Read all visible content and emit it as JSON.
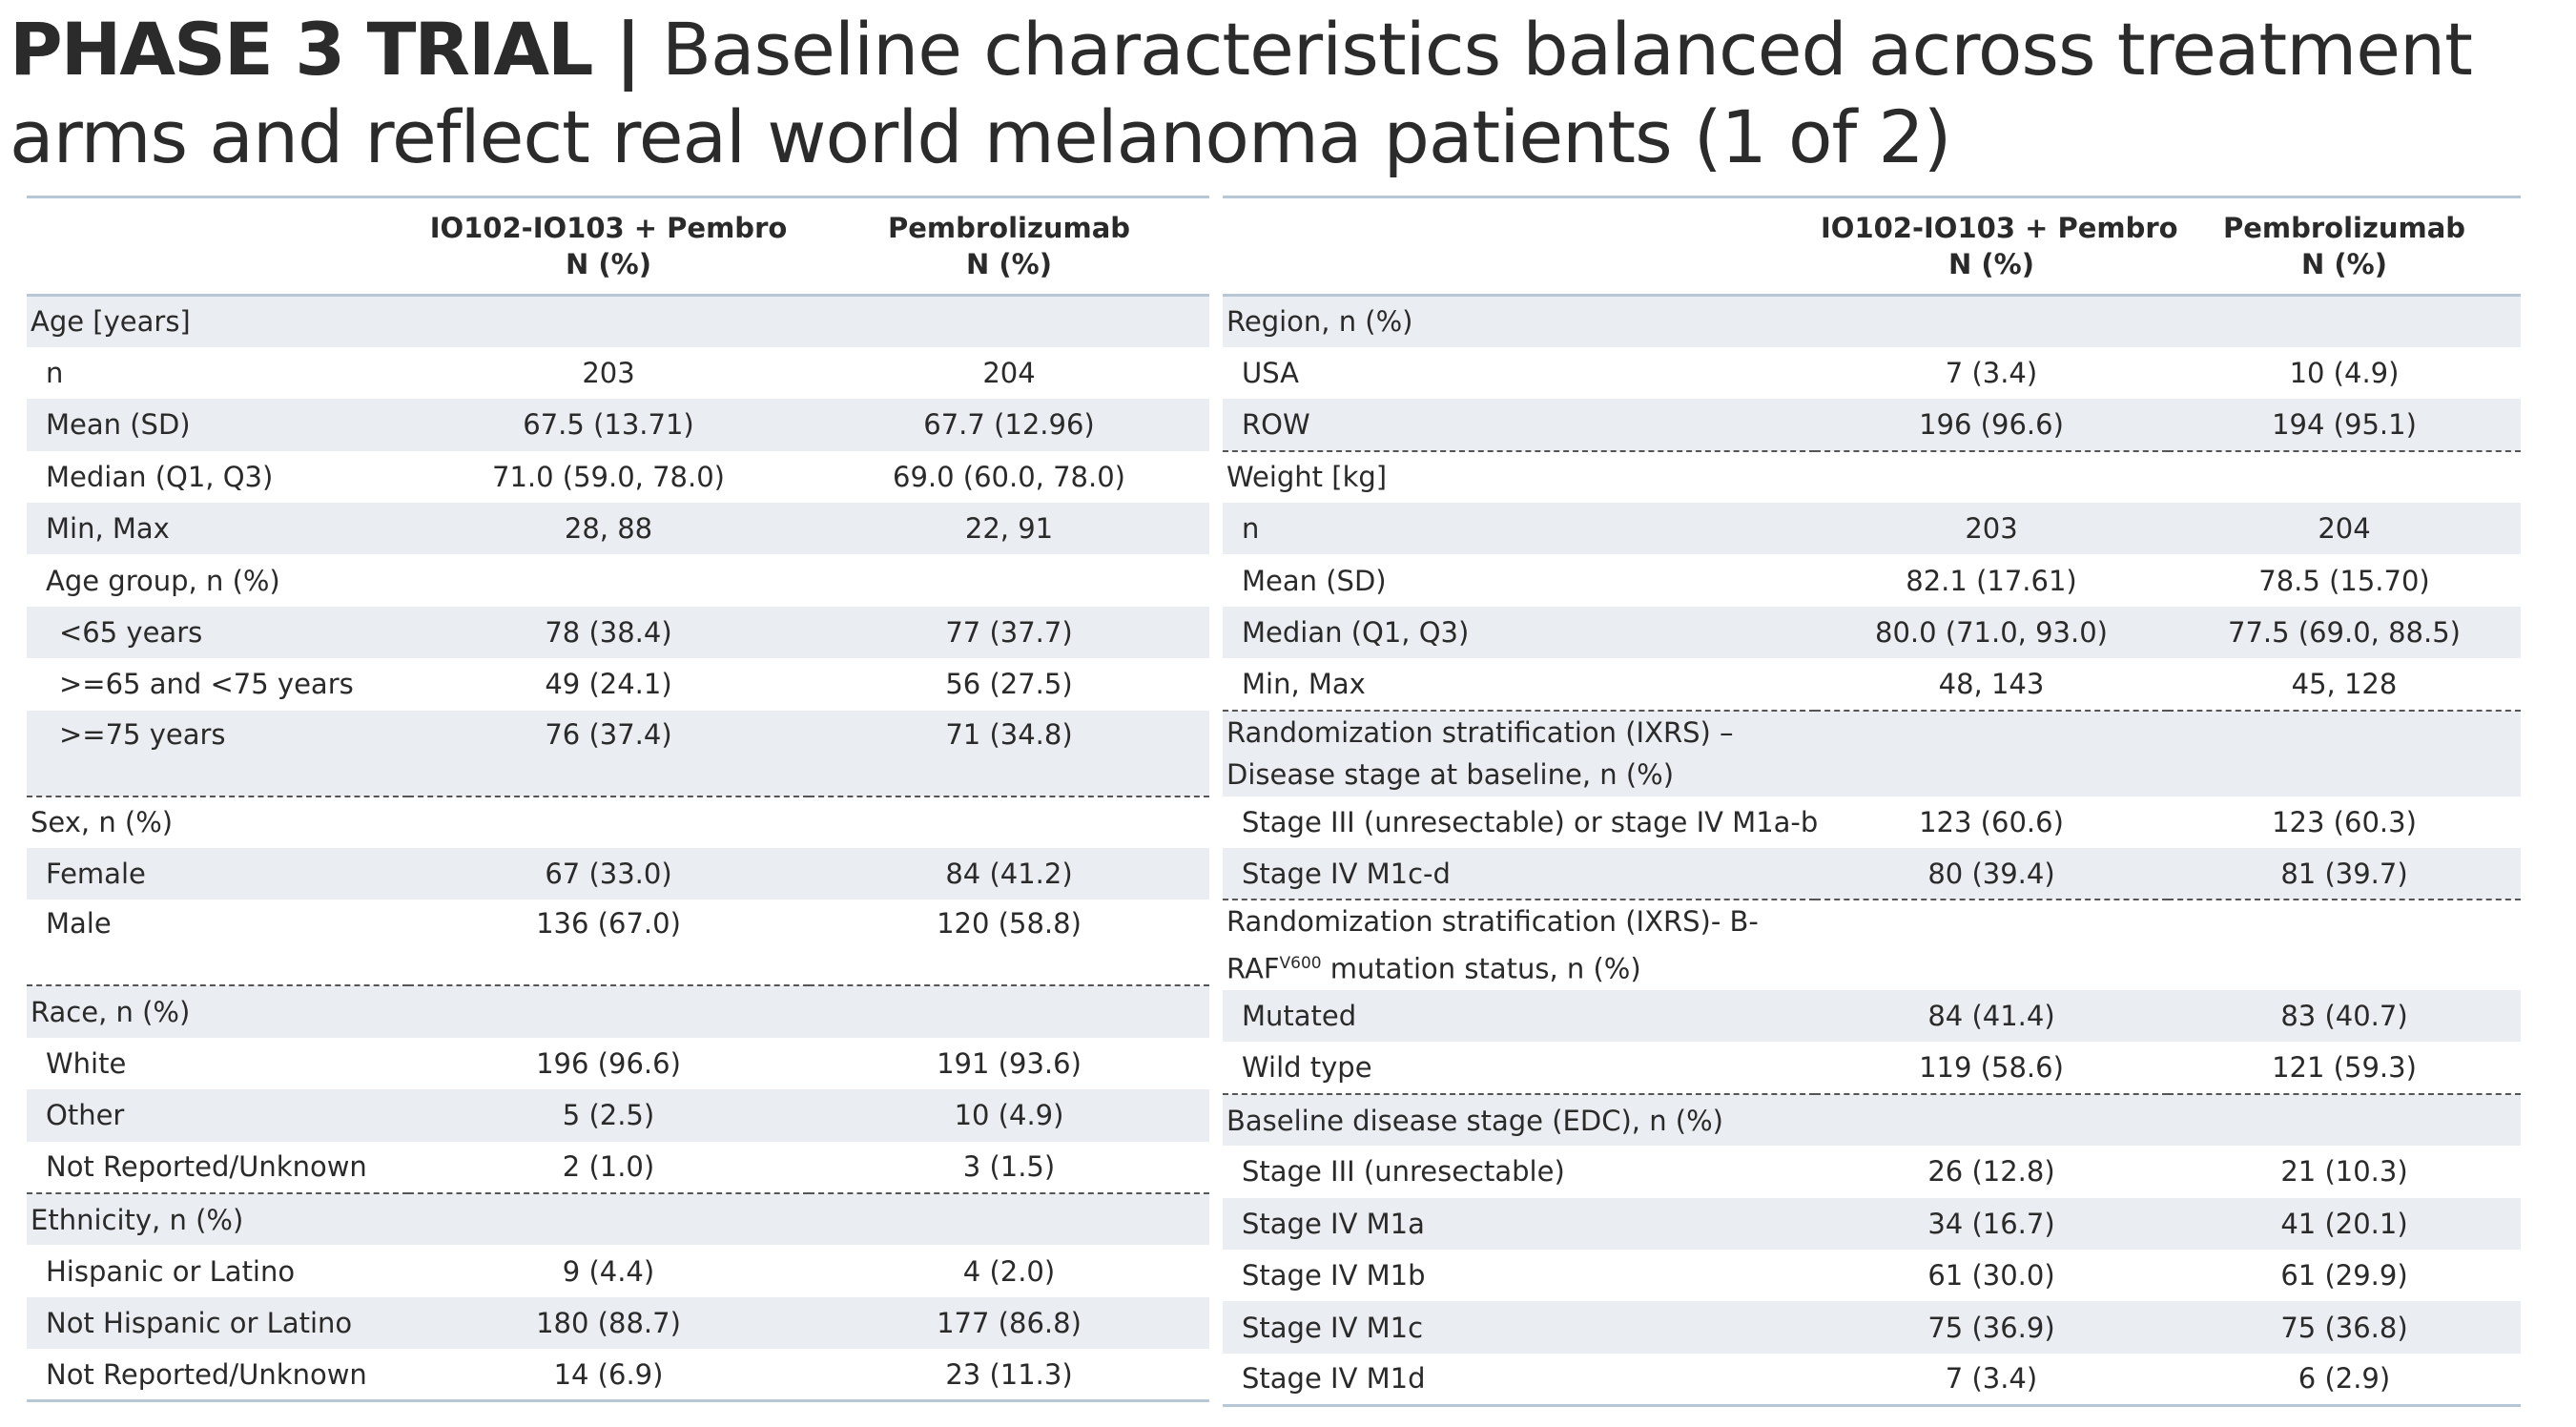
{
  "title": {
    "bold": "PHASE 3 TRIAL |",
    "rest": " Baseline characteristics balanced across treatment arms and reflect real world melanoma patients (1 of 2)"
  },
  "header": {
    "col1_line1": "IO102-IO103 + Pembro",
    "col1_line2": "N (%)",
    "col2_line1": "Pembrolizumab",
    "col2_line2": "N (%)"
  },
  "left": [
    {
      "label": "Age [years]",
      "a": "",
      "b": ""
    },
    {
      "label": "n",
      "a": "203",
      "b": "204"
    },
    {
      "label": "Mean (SD)",
      "a": "67.5 (13.71)",
      "b": "67.7 (12.96)"
    },
    {
      "label": "Median (Q1, Q3)",
      "a": "71.0 (59.0, 78.0)",
      "b": "69.0 (60.0, 78.0)"
    },
    {
      "label": "Min, Max",
      "a": "28, 88",
      "b": "22, 91"
    },
    {
      "label": "Age group, n (%)",
      "a": "",
      "b": ""
    },
    {
      "label": "<65 years",
      "a": "78 (38.4)",
      "b": "77 (37.7)"
    },
    {
      "label": ">=65 and <75 years",
      "a": "49 (24.1)",
      "b": "56 (27.5)"
    },
    {
      "label": ">=75 years",
      "a": "76 (37.4)",
      "b": "71 (34.8)"
    },
    {
      "label": "Sex, n (%)",
      "a": "",
      "b": ""
    },
    {
      "label": "Female",
      "a": "67 (33.0)",
      "b": "84 (41.2)"
    },
    {
      "label": "Male",
      "a": "136 (67.0)",
      "b": "120 (58.8)"
    },
    {
      "label": "Race, n (%)",
      "a": "",
      "b": ""
    },
    {
      "label": "White",
      "a": "196 (96.6)",
      "b": "191 (93.6)"
    },
    {
      "label": "Other",
      "a": "5 (2.5)",
      "b": "10 (4.9)"
    },
    {
      "label": "Not Reported/Unknown",
      "a": "2 (1.0)",
      "b": "3 (1.5)"
    },
    {
      "label": "Ethnicity, n (%)",
      "a": "",
      "b": ""
    },
    {
      "label": "Hispanic or Latino",
      "a": "9 (4.4)",
      "b": "4 (2.0)"
    },
    {
      "label": "Not Hispanic or Latino",
      "a": "180 (88.7)",
      "b": "177 (86.8)"
    },
    {
      "label": "Not Reported/Unknown",
      "a": "14 (6.9)",
      "b": "23 (11.3)"
    }
  ],
  "right": [
    {
      "label": "Region, n (%)",
      "a": "",
      "b": ""
    },
    {
      "label": "USA",
      "a": "7 (3.4)",
      "b": "10 (4.9)"
    },
    {
      "label": "ROW",
      "a": "196 (96.6)",
      "b": "194 (95.1)"
    },
    {
      "label": "Weight [kg]",
      "a": "",
      "b": ""
    },
    {
      "label": "n",
      "a": "203",
      "b": "204"
    },
    {
      "label": "Mean (SD)",
      "a": "82.1 (17.61)",
      "b": "78.5 (15.70)"
    },
    {
      "label": "Median (Q1, Q3)",
      "a": "80.0 (71.0, 93.0)",
      "b": "77.5 (69.0, 88.5)"
    },
    {
      "label": "Min, Max",
      "a": "48, 143",
      "b": "45, 128"
    },
    {
      "label": "Randomization stratification (IXRS) – Disease stage at baseline, n (%)",
      "a": "",
      "b": ""
    },
    {
      "label": "Stage III (unresectable) or stage IV M1a-b",
      "a": "123 (60.6)",
      "b": "123 (60.3)"
    },
    {
      "label": "Stage IV M1c-d",
      "a": "80 (39.4)",
      "b": "81 (39.7)"
    },
    {
      "label_pre": "Randomization stratification (IXRS)- B-RAF",
      "label_sup": "V600",
      "label_post": " mutation status, n (%)",
      "a": "",
      "b": ""
    },
    {
      "label": "Mutated",
      "a": "84 (41.4)",
      "b": "83 (40.7)"
    },
    {
      "label": "Wild type",
      "a": "119 (58.6)",
      "b": "121 (59.3)"
    },
    {
      "label": "Baseline disease stage (EDC), n (%)",
      "a": "",
      "b": ""
    },
    {
      "label": "Stage III (unresectable)",
      "a": "26 (12.8)",
      "b": "21 (10.3)"
    },
    {
      "label": "Stage IV M1a",
      "a": "34 (16.7)",
      "b": "41 (20.1)"
    },
    {
      "label": "Stage IV M1b",
      "a": "61 (30.0)",
      "b": "61 (29.9)"
    },
    {
      "label": "Stage IV M1c",
      "a": "75 (36.9)",
      "b": "75 (36.8)"
    },
    {
      "label": "Stage IV M1d",
      "a": "7 (3.4)",
      "b": "6 (2.9)"
    }
  ]
}
